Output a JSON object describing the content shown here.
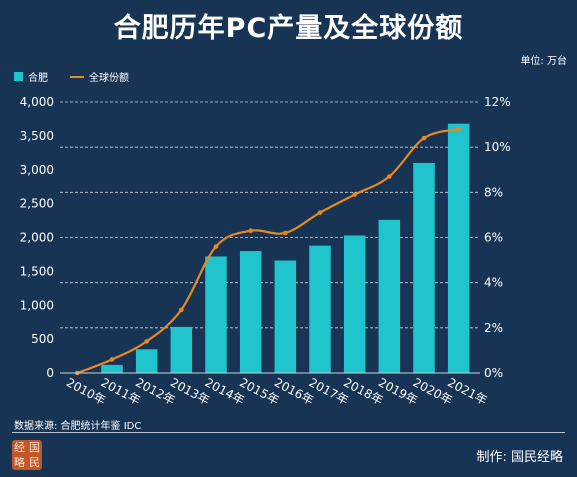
{
  "title": "合肥历年PC产量及全球份额",
  "unit": "单位: 万台",
  "source": "数据来源: 合肥统计年鉴 IDC",
  "credit": "制作: 国民经略",
  "seal_chars": [
    "经",
    "国",
    "略",
    "民"
  ],
  "colors": {
    "background": "#173455",
    "bar": "#20c4cc",
    "line": "#e8891f"
  },
  "chart_data": {
    "type": "bar",
    "categories": [
      "2010年",
      "2011年",
      "2012年",
      "2013年",
      "2014年",
      "2015年",
      "2016年",
      "2017年",
      "2018年",
      "2019年",
      "2020年",
      "2021年"
    ],
    "series": [
      {
        "name": "合肥",
        "type": "bar",
        "axis": "left",
        "values": [
          0,
          120,
          350,
          680,
          1720,
          1800,
          1660,
          1880,
          2030,
          2260,
          3100,
          3680
        ]
      },
      {
        "name": "全球份额",
        "type": "line",
        "axis": "right",
        "values": [
          0.0,
          0.6,
          1.4,
          2.8,
          5.6,
          6.3,
          6.2,
          7.1,
          7.9,
          8.7,
          10.4,
          10.8
        ]
      }
    ],
    "y_left": {
      "ticks": [
        "0",
        "500",
        "1,000",
        "1,500",
        "2,000",
        "2,500",
        "3,000",
        "3,500",
        "4,000"
      ],
      "ylim": [
        0,
        4000
      ]
    },
    "y_right": {
      "ticks": [
        "0%",
        "2%",
        "4%",
        "6%",
        "8%",
        "10%",
        "12%"
      ],
      "ylim": [
        0,
        12
      ]
    },
    "grid": true,
    "legend_position": "top-left"
  }
}
